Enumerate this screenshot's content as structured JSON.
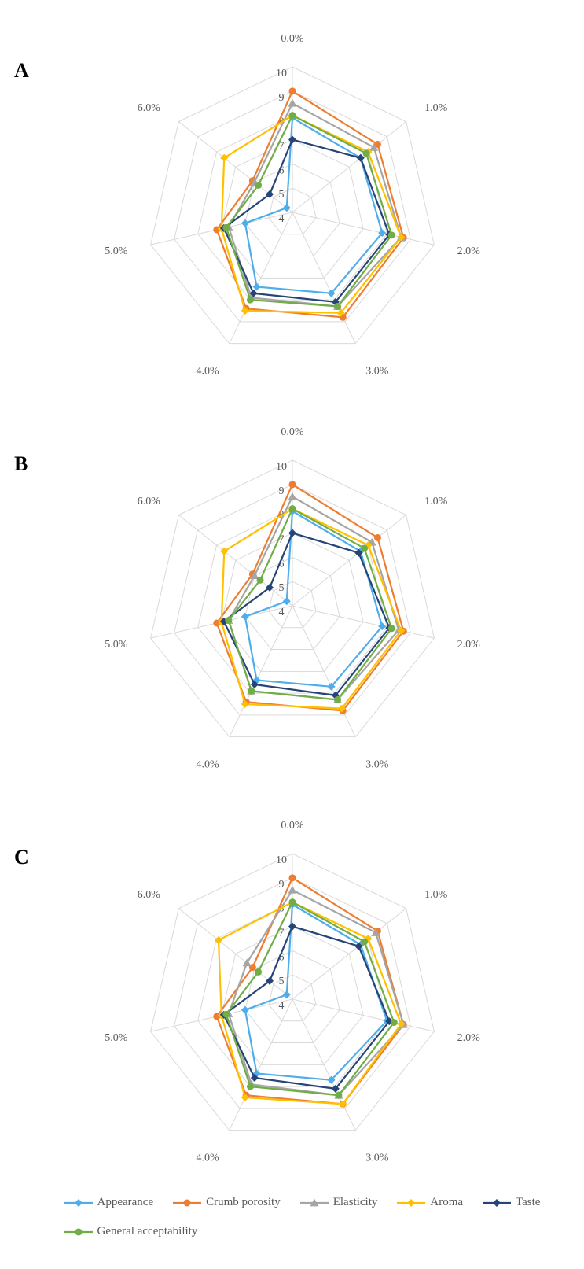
{
  "type": "radar-chart-panels",
  "background_color": "#ffffff",
  "grid_color": "#d9d9d9",
  "axis_label_color": "#595959",
  "axis_label_fontsize": 14,
  "radial_ticks": [
    4,
    5,
    6,
    7,
    8,
    9,
    10
  ],
  "rmin": 4,
  "rmax": 10,
  "axis_labels": [
    "0.0%",
    "1.0%",
    "2.0%",
    "3.0%",
    "4.0%",
    "5.0%",
    "6.0%"
  ],
  "panel_letters": [
    "A",
    "B",
    "C"
  ],
  "panel_letter_fontsize": 26,
  "legend_items": [
    {
      "label": "Appearance",
      "color": "#4eadea",
      "marker": "diamond"
    },
    {
      "label": "Crumb porosity",
      "color": "#ed7d31",
      "marker": "circle"
    },
    {
      "label": "Elasticity",
      "color": "#a5a5a5",
      "marker": "triangle"
    },
    {
      "label": "Aroma",
      "color": "#ffc000",
      "marker": "diamond"
    },
    {
      "label": "Taste",
      "color": "#264478",
      "marker": "diamond"
    },
    {
      "label": "General acceptability",
      "color": "#70ad47",
      "marker": "circle"
    }
  ],
  "panels": [
    {
      "letter": "A",
      "series": {
        "Appearance": [
          7.9,
          7.6,
          7.8,
          7.7,
          7.4,
          6.0,
          4.3
        ],
        "Crumb porosity": [
          9.0,
          8.5,
          8.7,
          8.8,
          8.4,
          7.2,
          6.1
        ],
        "Elasticity": [
          8.5,
          8.3,
          8.6,
          8.3,
          7.9,
          6.7,
          6.0
        ],
        "Aroma": [
          8.0,
          8.0,
          8.6,
          8.6,
          8.5,
          7.0,
          7.6
        ],
        "Taste": [
          7.0,
          7.6,
          8.1,
          8.1,
          7.7,
          6.9,
          5.2
        ],
        "General acceptability": [
          8.0,
          7.9,
          8.2,
          8.3,
          8.0,
          6.8,
          5.8
        ]
      }
    },
    {
      "letter": "B",
      "series": {
        "Appearance": [
          7.9,
          7.6,
          7.8,
          7.7,
          7.4,
          6.0,
          4.3
        ],
        "Crumb porosity": [
          9.0,
          8.5,
          8.7,
          8.8,
          8.4,
          7.2,
          6.1
        ],
        "Elasticity": [
          8.5,
          8.2,
          8.5,
          8.3,
          7.9,
          6.7,
          6.0
        ],
        "Aroma": [
          8.0,
          8.0,
          8.6,
          8.7,
          8.5,
          7.0,
          7.6
        ],
        "Taste": [
          7.0,
          7.5,
          8.1,
          8.1,
          7.6,
          6.9,
          5.2
        ],
        "General acceptability": [
          8.0,
          7.8,
          8.2,
          8.3,
          7.9,
          6.7,
          5.7
        ]
      }
    },
    {
      "letter": "C",
      "series": {
        "Appearance": [
          7.9,
          7.6,
          8.0,
          7.7,
          7.4,
          6.0,
          4.3
        ],
        "Crumb porosity": [
          9.0,
          8.5,
          8.7,
          8.8,
          8.4,
          7.2,
          6.1
        ],
        "Elasticity": [
          8.5,
          8.4,
          8.7,
          8.4,
          7.9,
          6.7,
          6.4
        ],
        "Aroma": [
          8.0,
          8.0,
          8.6,
          8.8,
          8.5,
          7.0,
          7.9
        ],
        "Taste": [
          7.0,
          7.5,
          8.1,
          8.1,
          7.6,
          6.9,
          5.2
        ],
        "General acceptability": [
          8.0,
          7.8,
          8.3,
          8.4,
          8.0,
          6.8,
          5.8
        ]
      }
    }
  ],
  "line_width": 2.2,
  "marker_size": 5
}
